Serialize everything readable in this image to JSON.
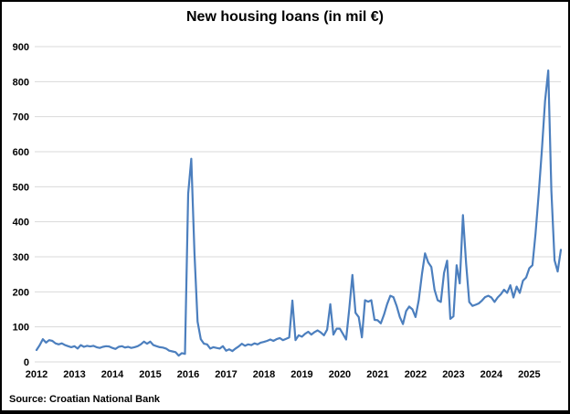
{
  "window": {
    "background": "#FFFFFF",
    "border_color": "#000000"
  },
  "chart_data": {
    "type": "line",
    "title": "New housing loans (in mil €)",
    "source": "Source: Croatian National Bank",
    "xlabel": "",
    "ylabel": "",
    "ylim": [
      0,
      900
    ],
    "y_ticks": [
      0,
      100,
      200,
      300,
      400,
      500,
      600,
      700,
      800,
      900
    ],
    "x_tick_labels": [
      "2012",
      "2013",
      "2014",
      "2015",
      "2016",
      "2017",
      "2018",
      "2019",
      "2020",
      "2021",
      "2022",
      "2023",
      "2024",
      "2025"
    ],
    "frequency": "monthly",
    "start_month": "2012-01",
    "end_month": "2025-11",
    "grid": "horizontal",
    "legend": "none",
    "line_color": "#4C7FBE",
    "grid_color": "#D9D9D9",
    "series": [
      {
        "name": "New housing loans (in mil €)",
        "color": "#4C7FBE",
        "values": [
          34,
          48,
          65,
          55,
          62,
          60,
          53,
          50,
          53,
          48,
          45,
          42,
          45,
          38,
          48,
          43,
          46,
          44,
          46,
          42,
          40,
          43,
          45,
          44,
          40,
          37,
          43,
          45,
          41,
          43,
          40,
          42,
          45,
          50,
          58,
          52,
          58,
          48,
          45,
          42,
          41,
          38,
          32,
          30,
          28,
          18,
          25,
          23,
          480,
          580,
          310,
          115,
          65,
          52,
          50,
          38,
          42,
          40,
          38,
          45,
          32,
          36,
          31,
          38,
          44,
          52,
          46,
          50,
          48,
          53,
          50,
          55,
          57,
          60,
          64,
          60,
          65,
          68,
          62,
          66,
          70,
          175,
          62,
          76,
          72,
          80,
          86,
          78,
          85,
          90,
          84,
          76,
          92,
          165,
          78,
          95,
          95,
          80,
          64,
          150,
          248,
          140,
          128,
          70,
          176,
          172,
          176,
          120,
          119,
          110,
          135,
          165,
          189,
          185,
          160,
          128,
          108,
          145,
          158,
          150,
          128,
          176,
          250,
          310,
          284,
          271,
          206,
          176,
          171,
          254,
          289,
          123,
          130,
          276,
          224,
          419,
          280,
          171,
          160,
          163,
          167,
          175,
          185,
          189,
          184,
          171,
          184,
          193,
          206,
          197,
          219,
          184,
          215,
          197,
          232,
          241,
          267,
          276,
          367,
          482,
          608,
          745,
          832,
          489,
          290,
          258,
          320
        ]
      }
    ]
  }
}
